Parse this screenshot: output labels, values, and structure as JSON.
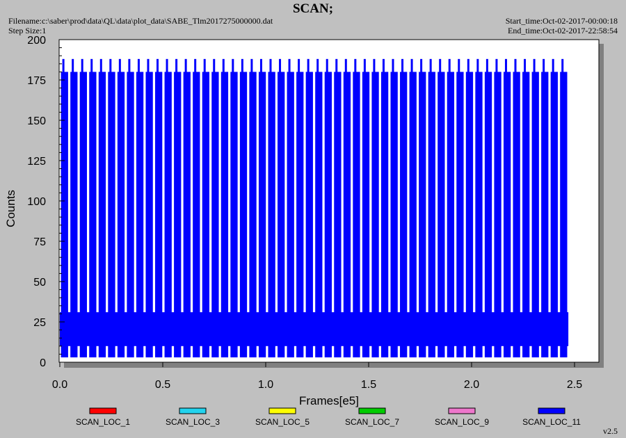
{
  "header": {
    "title": "SCAN;",
    "filename": "Filename:c:\\saber\\prod\\data\\QL\\data\\plot_data\\SABE_Tlm2017275000000.dat",
    "step_size": "Step Size:1",
    "start_time": "Start_time:Oct-02-2017-00:00:18",
    "end_time": "End_time:Oct-02-2017-22:58:54"
  },
  "footer": {
    "version": "v2.5"
  },
  "chart_data": {
    "type": "line",
    "title": "SCAN;",
    "xlabel": "Frames[e5]",
    "ylabel": "Counts",
    "xlim": [
      0,
      2.6
    ],
    "ylim": [
      0,
      200
    ],
    "x_ticks": [
      0.0,
      0.5,
      1.0,
      1.5,
      2.0,
      2.5
    ],
    "x_tick_labels": [
      "0.0",
      "0.5",
      "1.0",
      "1.5",
      "2.0",
      "2.5"
    ],
    "y_ticks": [
      0,
      25,
      50,
      75,
      100,
      125,
      150,
      175,
      200
    ],
    "y_tick_labels": [
      "0",
      "25",
      "50",
      "75",
      "100",
      "125",
      "150",
      "175",
      "200"
    ],
    "grid": false,
    "legend_position": "bottom",
    "series": [
      {
        "name": "SCAN_LOC_1",
        "color": "#ff0000"
      },
      {
        "name": "SCAN_LOC_3",
        "color": "#22d3ee"
      },
      {
        "name": "SCAN_LOC_5",
        "color": "#ffff00"
      },
      {
        "name": "SCAN_LOC_7",
        "color": "#00cc00"
      },
      {
        "name": "SCAN_LOC_9",
        "color": "#ee77cc"
      },
      {
        "name": "SCAN_LOC_11",
        "color": "#0000ff"
      }
    ],
    "scan_pattern": {
      "x_start": 0.0,
      "x_end": 2.47,
      "scan_count": 54,
      "scan_peak": 180,
      "scan_spike_peak": 188,
      "scan_min": 3,
      "baseline_band_low": 10,
      "baseline_band_high": 31
    }
  }
}
